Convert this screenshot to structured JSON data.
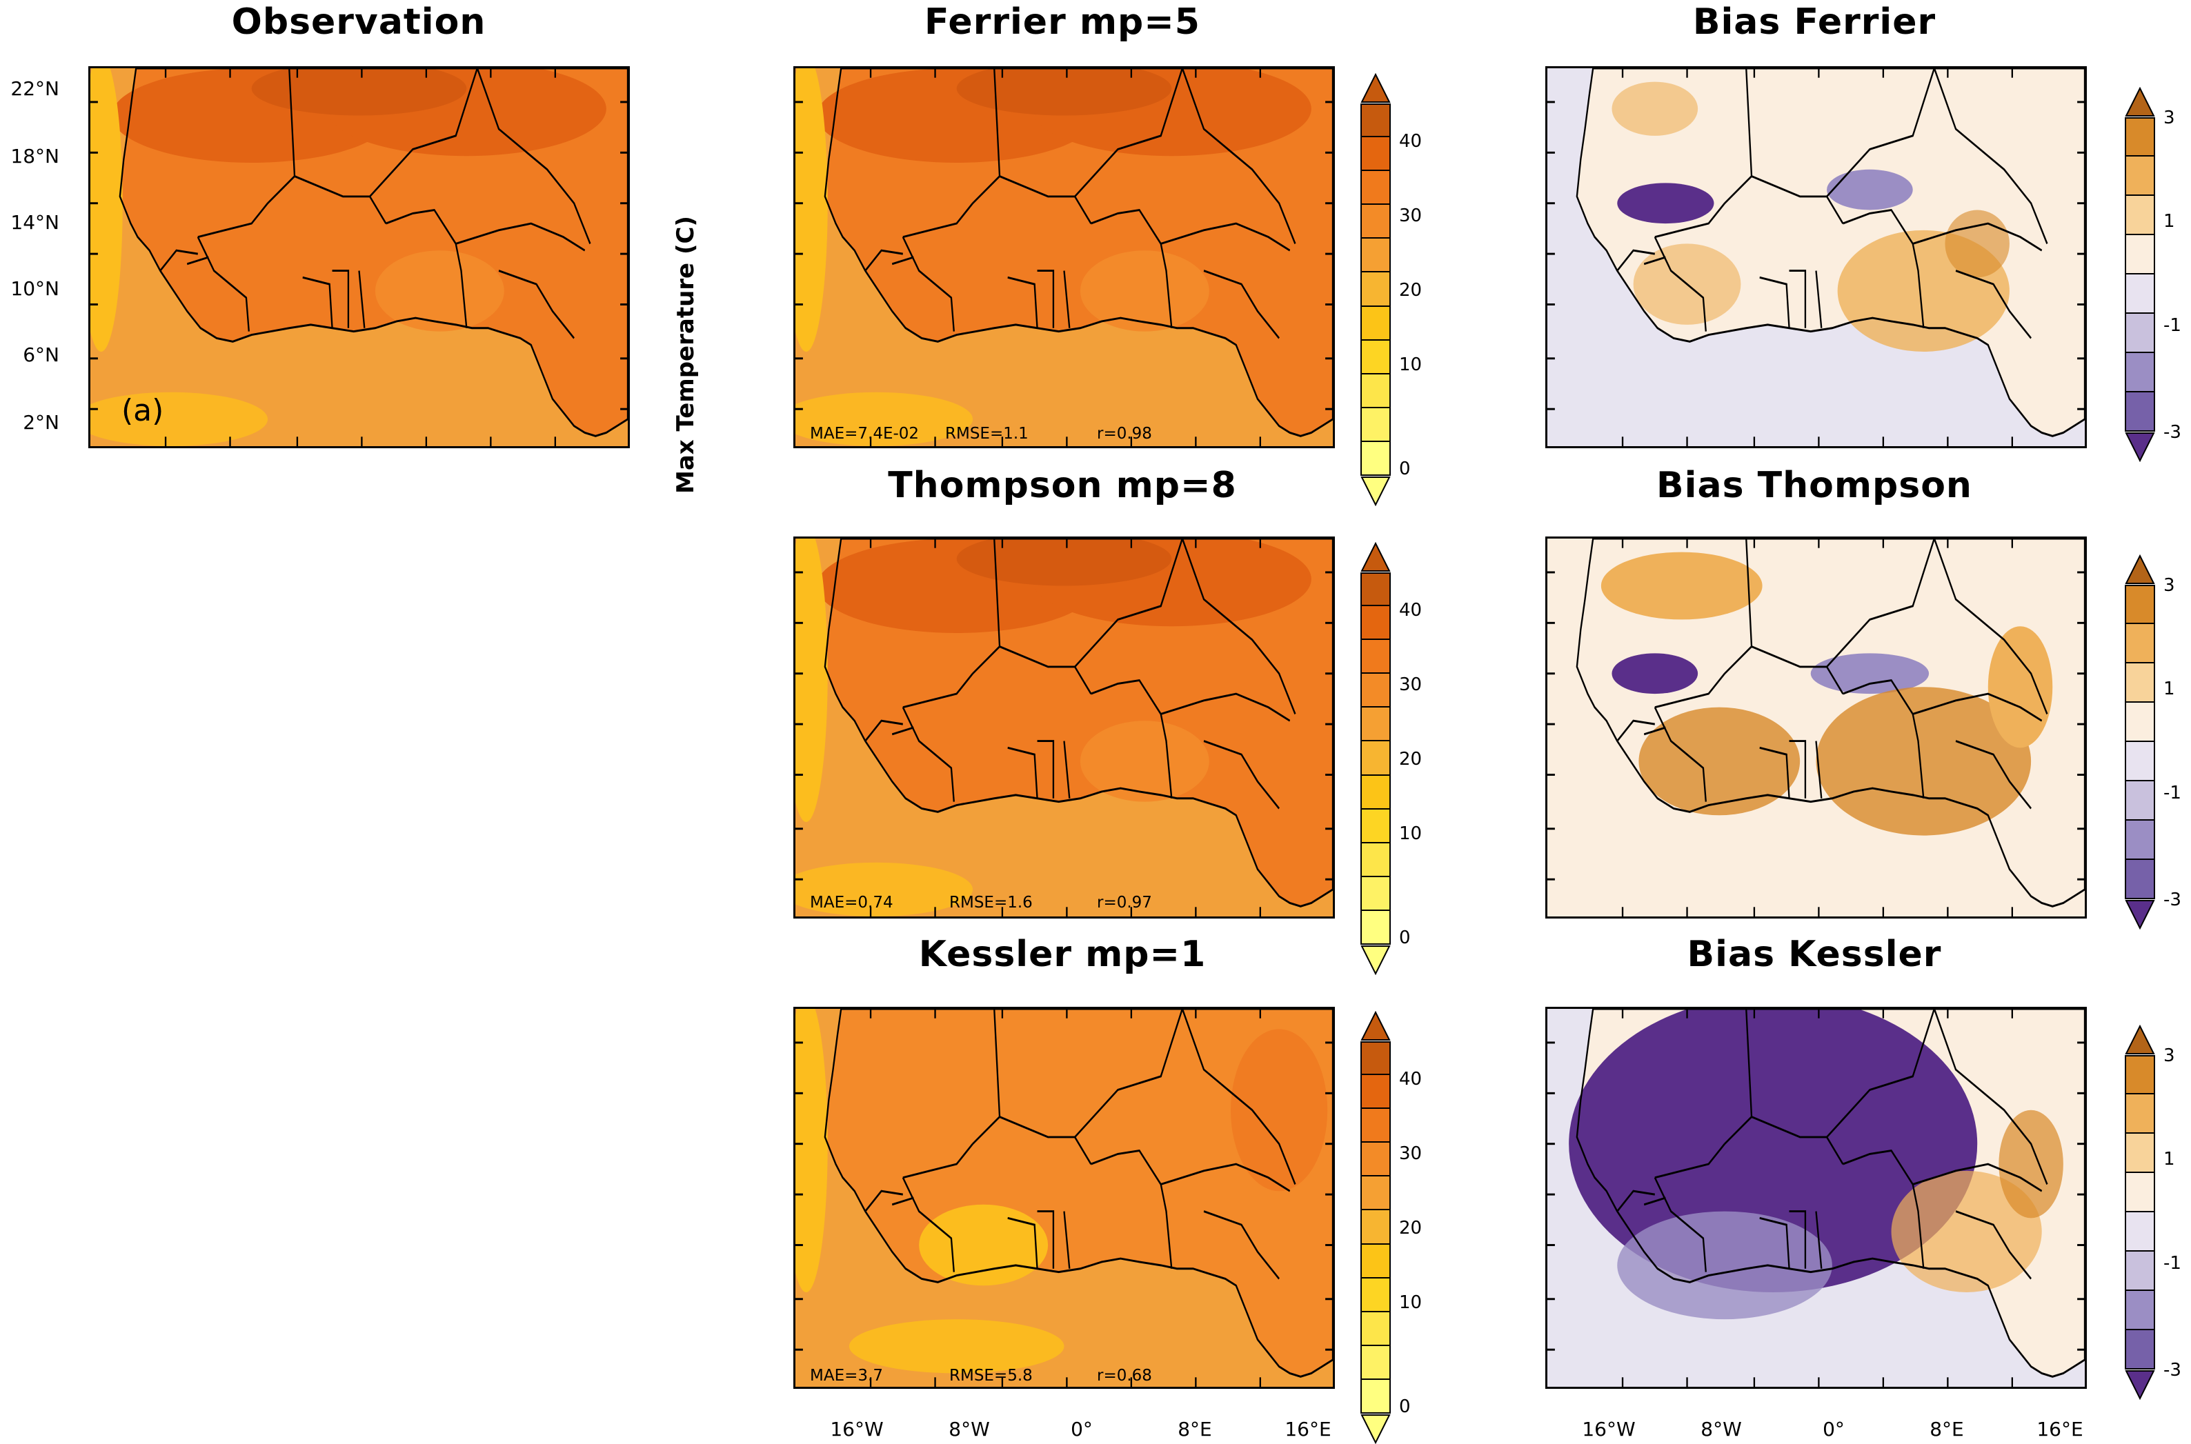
{
  "titles": {
    "observation": "Observation",
    "ferrier": "Ferrier mp=5",
    "thompson": "Thompson mp=8",
    "kessler": "Kessler mp=1",
    "bias_ferrier": "Bias Ferrier",
    "bias_thompson": "Bias Thompson",
    "bias_kessler": "Bias Kessler"
  },
  "panel_label": "(a)",
  "colorbar_title": "Max Temperature (C)",
  "lat_labels": [
    "22°N",
    "18°N",
    "14°N",
    "10°N",
    "6°N",
    "2°N"
  ],
  "lon_labels": [
    "16°W",
    "8°W",
    "0°",
    "8°E",
    "16°E"
  ],
  "temp_colorbar": {
    "labels": [
      "40",
      "30",
      "20",
      "10",
      "0"
    ],
    "colors": [
      "#c65a0e",
      "#e4660f",
      "#f07a1c",
      "#f38b27",
      "#f5a033",
      "#f7b531",
      "#fcc417",
      "#fdd523",
      "#fde54a",
      "#fef265",
      "#ffff80"
    ]
  },
  "bias_colorbar": {
    "labels": [
      "3",
      "1",
      "-1",
      "-3"
    ],
    "colors": [
      "#b36418",
      "#d88a2a",
      "#efb15a",
      "#f8d39a",
      "#fbeedf",
      "#e8e3f0",
      "#c9c1dd",
      "#9b8ec4",
      "#7661a9",
      "#5a2f8a"
    ]
  },
  "stats": {
    "ferrier": {
      "mae": "MAE=7.4E-02",
      "rmse": "RMSE=1.1",
      "r": "r=0.98"
    },
    "thompson": {
      "mae": "MAE=0.74",
      "rmse": "RMSE=1.6",
      "r": "r=0.97"
    },
    "kessler": {
      "mae": "MAE=3.7",
      "rmse": "RMSE=5.8",
      "r": "r=0.68"
    }
  },
  "map_colors": {
    "ocean_temp": "#f2a03a",
    "land_hot": "#e36414",
    "land_mid": "#f07c22",
    "land_warm": "#f38a2a",
    "coast_yellow": "#fcbd1e",
    "bias_bg": "#fbeedf",
    "bias_ocean": "#e7e4f0",
    "bias_warm": "#efb15a",
    "bias_hot": "#d88a2a",
    "bias_cold": "#5a2f8a",
    "bias_cool": "#9b8ec4"
  }
}
